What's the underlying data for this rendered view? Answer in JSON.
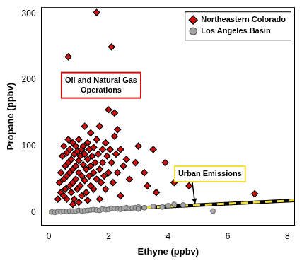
{
  "chart_data": {
    "type": "scatter",
    "x_label": "Ethyne (ppbv)",
    "y_label": "Propane (ppbv)",
    "xlim": [
      -0.25,
      8.25
    ],
    "ylim": [
      -20,
      310
    ],
    "xticks": [
      0,
      2,
      4,
      6,
      8
    ],
    "yticks": [
      0,
      100,
      200,
      300
    ],
    "grid": false,
    "legend": "upper right",
    "series": [
      {
        "name": "Northeastern Colorado",
        "color": "#cc1111",
        "marker": "diamond",
        "x": [
          0.3,
          0.35,
          0.4,
          0.4,
          0.45,
          0.5,
          0.5,
          0.5,
          0.55,
          0.55,
          0.6,
          0.6,
          0.6,
          0.65,
          0.65,
          0.65,
          0.7,
          0.7,
          0.7,
          0.75,
          0.75,
          0.8,
          0.8,
          0.8,
          0.85,
          0.85,
          0.9,
          0.9,
          0.9,
          0.95,
          0.95,
          1.0,
          1.0,
          1.0,
          1.05,
          1.05,
          1.1,
          1.1,
          1.1,
          1.15,
          1.15,
          1.2,
          1.2,
          1.2,
          1.25,
          1.25,
          1.3,
          1.3,
          1.35,
          1.35,
          1.4,
          1.4,
          1.4,
          1.45,
          1.5,
          1.5,
          1.5,
          1.55,
          1.6,
          1.6,
          1.6,
          1.65,
          1.7,
          1.7,
          1.75,
          1.8,
          1.8,
          1.85,
          1.9,
          1.9,
          1.95,
          2.0,
          2.0,
          2.05,
          2.1,
          2.1,
          2.15,
          2.2,
          2.2,
          2.25,
          2.3,
          2.3,
          2.4,
          2.5,
          2.6,
          2.7,
          2.9,
          3.0,
          3.2,
          3.3,
          3.5,
          3.6,
          3.9,
          4.2,
          4.7,
          6.9,
          1.0,
          1.3,
          0.8,
          1.7,
          2.4
        ],
        "values": [
          20,
          45,
          30,
          60,
          85,
          25,
          50,
          100,
          70,
          35,
          90,
          55,
          20,
          235,
          110,
          75,
          40,
          95,
          60,
          80,
          30,
          105,
          65,
          45,
          88,
          20,
          70,
          100,
          50,
          35,
          92,
          78,
          60,
          110,
          40,
          85,
          95,
          55,
          25,
          72,
          100,
          48,
          88,
          130,
          65,
          30,
          80,
          105,
          55,
          95,
          70,
          40,
          120,
          85,
          60,
          98,
          35,
          75,
          302,
          110,
          50,
          88,
          65,
          130,
          45,
          95,
          75,
          55,
          105,
          35,
          85,
          155,
          60,
          95,
          250,
          75,
          45,
          150,
          115,
          88,
          125,
          60,
          95,
          70,
          80,
          50,
          75,
          100,
          60,
          40,
          95,
          30,
          75,
          45,
          40,
          28,
          15,
          18,
          12,
          20,
          25
        ]
      },
      {
        "name": "Los Angeles Basin",
        "color": "#a6a6a6",
        "marker": "circle",
        "x": [
          0.1,
          0.2,
          0.3,
          0.4,
          0.5,
          0.6,
          0.7,
          0.8,
          0.9,
          1.0,
          1.1,
          1.2,
          1.3,
          1.4,
          1.5,
          1.6,
          1.7,
          1.8,
          1.9,
          2.0,
          2.1,
          2.2,
          2.3,
          2.4,
          2.5,
          2.6,
          2.7,
          2.8,
          2.9,
          3.0,
          3.0,
          3.2,
          3.5,
          3.8,
          4.0,
          4.2,
          4.5,
          5.5
        ],
        "values": [
          0.5,
          0,
          1,
          0.8,
          1.5,
          1.2,
          2,
          1.8,
          2,
          3,
          2,
          2.5,
          3,
          3.5,
          4,
          3.5,
          3,
          5,
          4,
          4.5,
          6,
          5.5,
          5,
          4.5,
          6,
          7,
          6,
          6.5,
          7,
          8,
          5,
          7,
          9,
          8,
          10,
          12,
          11,
          2
        ]
      },
      {
        "type": "line",
        "line_style": "dashed",
        "color": "#f2e03c",
        "x": [
          0,
          8.25
        ],
        "values": [
          0,
          18
        ]
      }
    ],
    "annotations": [
      {
        "text": "Oil and Natural Gas Operations",
        "color": "#cc1111",
        "x": 1.75,
        "y": 192
      },
      {
        "text": "Urban Emissions",
        "color": "#f2e03c",
        "x": 5.4,
        "y": 58,
        "arrow_x": 4.9,
        "arrow_y": 12
      }
    ]
  }
}
